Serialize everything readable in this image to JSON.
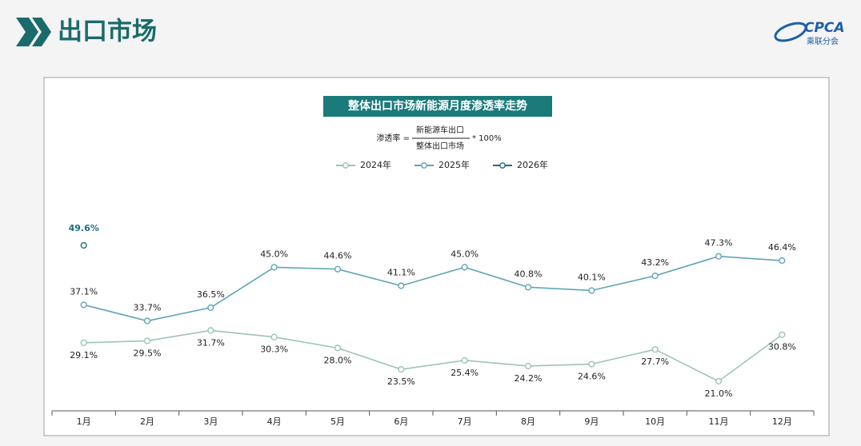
{
  "header": {
    "title": "出口市场",
    "logo_text": "CPCA",
    "logo_subtext": "乘联分会"
  },
  "chart_data": {
    "type": "line",
    "title": "整体出口市场新能源月度渗透率走势",
    "formula": {
      "label": "渗透率 =",
      "numerator": "新能源车出口",
      "denominator": "整体出口市场",
      "multiplier": "* 100%"
    },
    "categories": [
      "1月",
      "2月",
      "3月",
      "4月",
      "5月",
      "6月",
      "7月",
      "8月",
      "9月",
      "10月",
      "11月",
      "12月"
    ],
    "series": [
      {
        "name": "2024年",
        "color": "#9cc4b8",
        "values": [
          29.1,
          29.5,
          31.7,
          30.3,
          28.0,
          23.5,
          25.4,
          24.2,
          24.6,
          27.7,
          21.0,
          30.8
        ],
        "value_labels": [
          "29.1%",
          "29.5%",
          "31.7%",
          "30.3%",
          "28.0%",
          "23.5%",
          "25.4%",
          "24.2%",
          "24.6%",
          "27.7%",
          "21.0%",
          "30.8%"
        ]
      },
      {
        "name": "2025年",
        "color": "#5fa5b6",
        "values": [
          37.1,
          33.7,
          36.5,
          45.0,
          44.6,
          41.1,
          45.0,
          40.8,
          40.1,
          43.2,
          47.3,
          46.4
        ],
        "value_labels": [
          "37.1%",
          "33.7%",
          "36.5%",
          "45.0%",
          "44.6%",
          "41.1%",
          "45.0%",
          "40.8%",
          "40.1%",
          "43.2%",
          "47.3%",
          "46.4%"
        ]
      },
      {
        "name": "2026年",
        "color": "#1d6e7e",
        "values": [
          49.6,
          null,
          null,
          null,
          null,
          null,
          null,
          null,
          null,
          null,
          null,
          null
        ],
        "value_labels": [
          "49.6%",
          null,
          null,
          null,
          null,
          null,
          null,
          null,
          null,
          null,
          null,
          null
        ]
      }
    ]
  }
}
